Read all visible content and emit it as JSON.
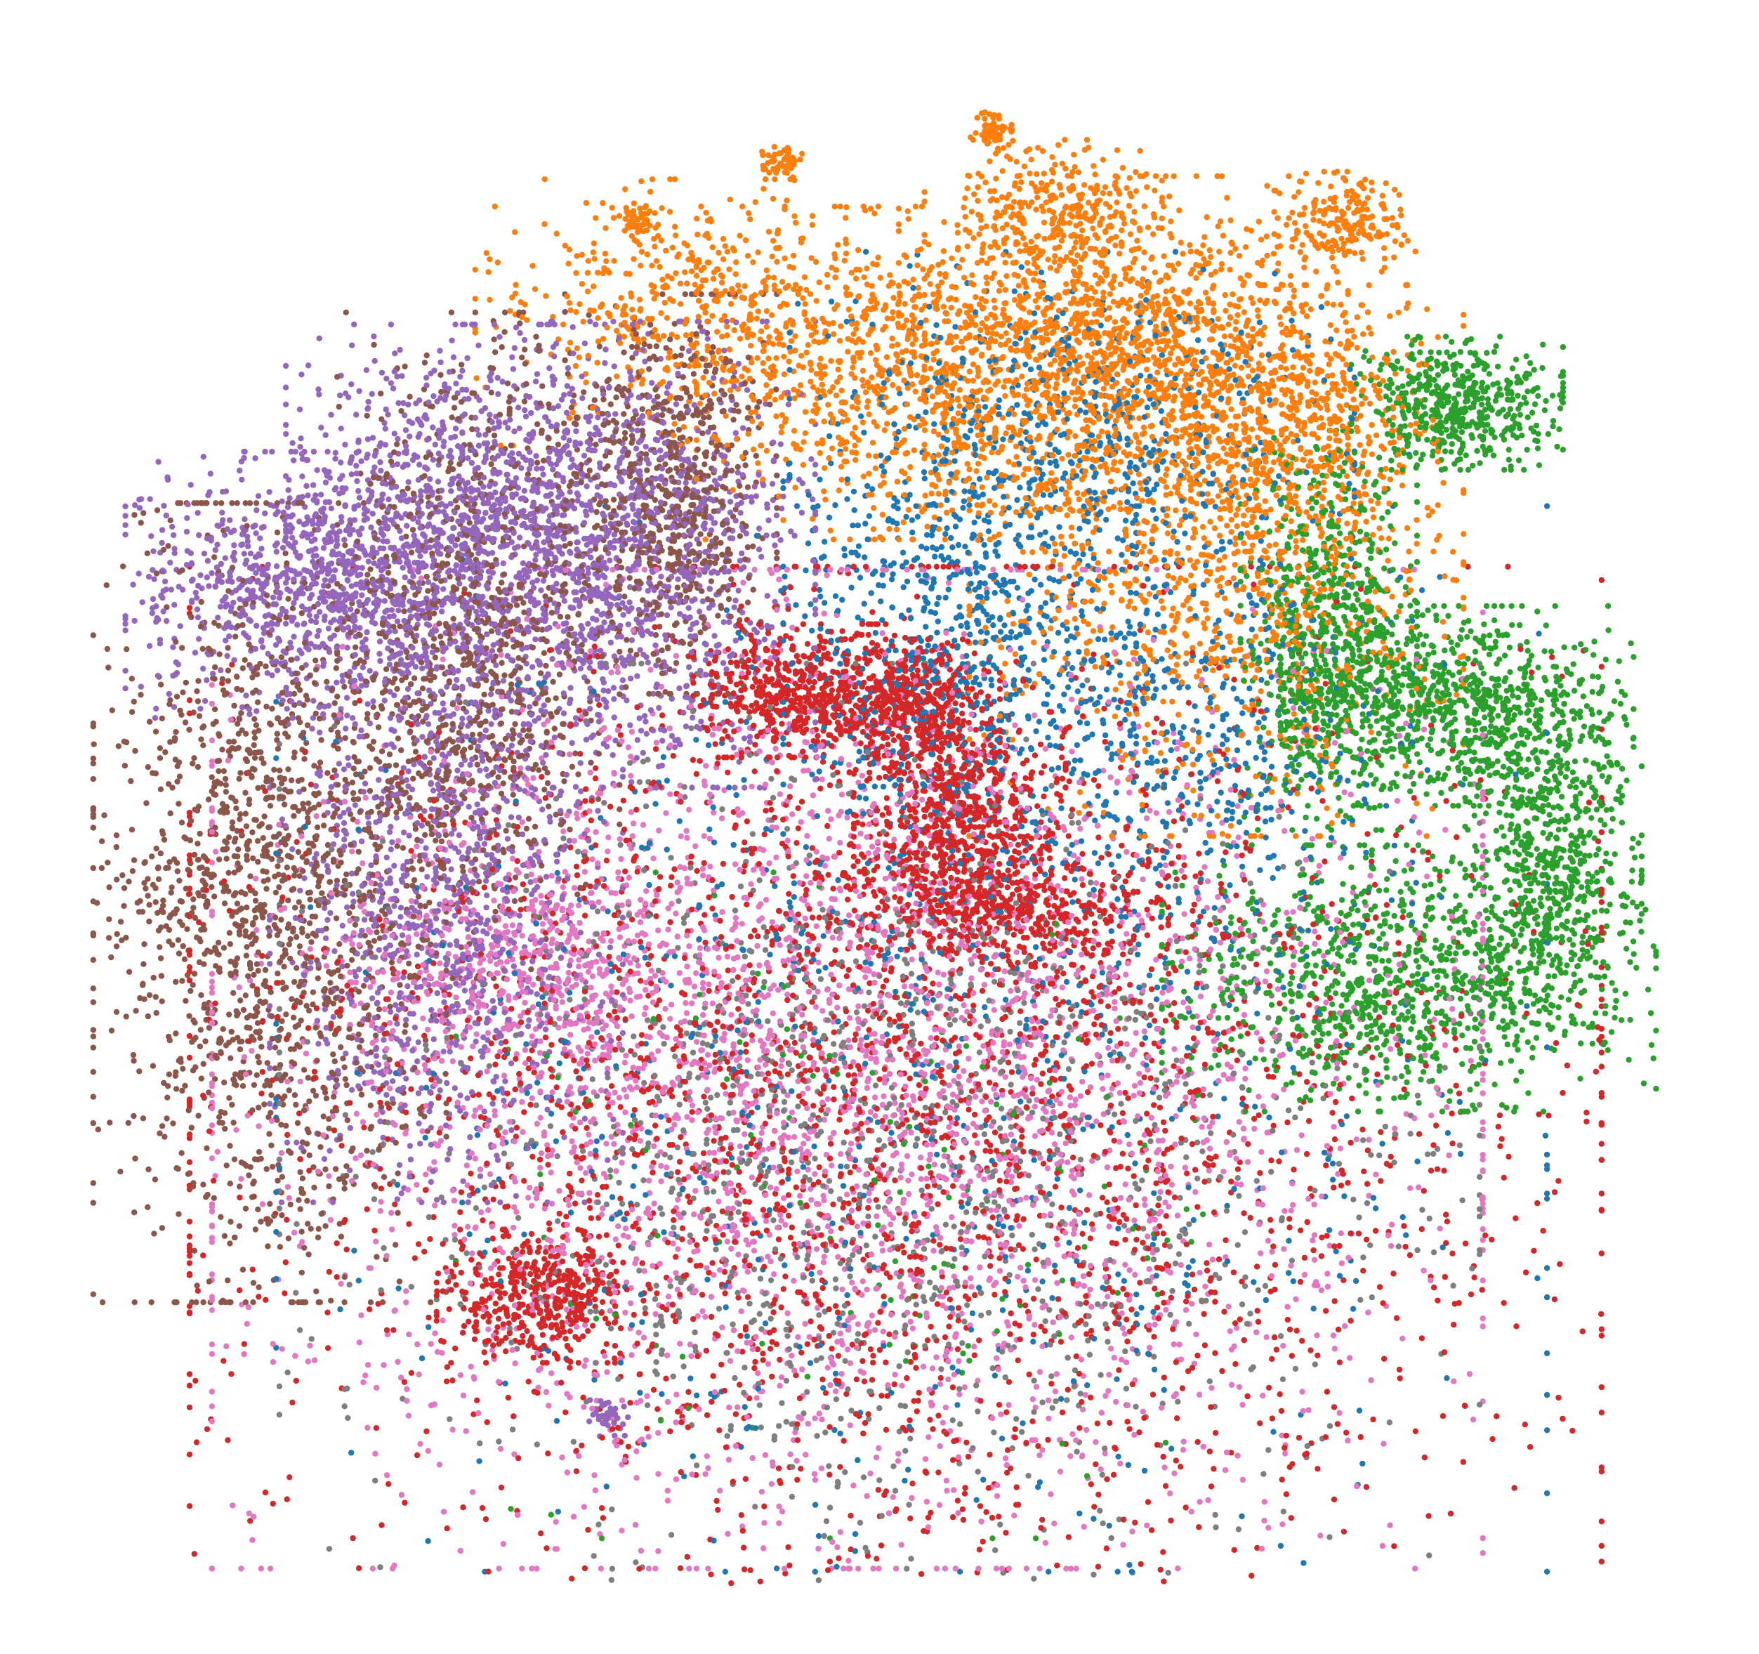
{
  "chart_data": {
    "type": "scatter",
    "title": "",
    "xlabel": "",
    "ylabel": "",
    "axes_visible": false,
    "grid": false,
    "legend": "none",
    "xlim": [
      0,
      100
    ],
    "ylim": [
      0,
      100
    ],
    "marker": "dot",
    "series": [
      {
        "color": "#1f77b4",
        "regions": [
          {
            "center": [
              55,
              63
            ],
            "spread": [
              5,
              7
            ],
            "count": 700
          },
          {
            "center": [
              62,
              77
            ],
            "spread": [
              8,
              5
            ],
            "count": 500
          },
          {
            "center": [
              70,
              57
            ],
            "spread": [
              6,
              8
            ],
            "count": 500
          },
          {
            "center": [
              52,
              36
            ],
            "spread": [
              18,
              16
            ],
            "count": 900
          }
        ]
      },
      {
        "color": "#ff7f0e",
        "regions": [
          {
            "center": [
              54,
              80
            ],
            "spread": [
              7,
              5
            ],
            "count": 1100
          },
          {
            "center": [
              66,
              82
            ],
            "spread": [
              6,
              5
            ],
            "count": 1000
          },
          {
            "center": [
              71,
              67
            ],
            "spread": [
              7,
              8
            ],
            "count": 1200
          },
          {
            "center": [
              76,
              77
            ],
            "spread": [
              4,
              4
            ],
            "count": 500
          },
          {
            "center": [
              38,
              84
            ],
            "spread": [
              6,
              4
            ],
            "count": 500
          },
          {
            "center": [
              61,
              91
            ],
            "spread": [
              3,
              2
            ],
            "count": 250
          },
          {
            "center": [
              79,
              90
            ],
            "spread": [
              2,
              1.5
            ],
            "count": 200
          },
          {
            "center": [
              57,
              96
            ],
            "spread": [
              0.6,
              0.6
            ],
            "count": 60
          },
          {
            "center": [
              44,
              94
            ],
            "spread": [
              0.6,
              0.6
            ],
            "count": 50
          },
          {
            "center": [
              35,
              90
            ],
            "spread": [
              0.6,
              0.6
            ],
            "count": 50
          }
        ]
      },
      {
        "color": "#2ca02c",
        "regions": [
          {
            "center": [
              86,
              78
            ],
            "spread": [
              3,
              2
            ],
            "count": 500
          },
          {
            "center": [
              78,
              63
            ],
            "spread": [
              2.5,
              6
            ],
            "count": 700
          },
          {
            "center": [
              86,
              58
            ],
            "spread": [
              5,
              3
            ],
            "count": 800
          },
          {
            "center": [
              92,
              48
            ],
            "spread": [
              2.5,
              5
            ],
            "count": 600
          },
          {
            "center": [
              83,
              40
            ],
            "spread": [
              7,
              4
            ],
            "count": 1000
          },
          {
            "center": [
              50,
              25
            ],
            "spread": [
              12,
              10
            ],
            "count": 150
          }
        ]
      },
      {
        "color": "#d62728",
        "regions": [
          {
            "center": [
              45,
              59
            ],
            "spread": [
              3,
              2
            ],
            "count": 500
          },
          {
            "center": [
              52,
              58
            ],
            "spread": [
              2.5,
              2
            ],
            "count": 450
          },
          {
            "center": [
              55,
              51
            ],
            "spread": [
              3,
              3
            ],
            "count": 500
          },
          {
            "center": [
              57,
              45
            ],
            "spread": [
              5,
              2
            ],
            "count": 500
          },
          {
            "center": [
              29,
              19
            ],
            "spread": [
              3,
              2
            ],
            "count": 400
          },
          {
            "center": [
              51,
              32
            ],
            "spread": [
              20,
              16
            ],
            "count": 3200
          }
        ]
      },
      {
        "color": "#9467bd",
        "regions": [
          {
            "center": [
              14,
              66
            ],
            "spread": [
              5,
              4
            ],
            "count": 900
          },
          {
            "center": [
              24,
              70
            ],
            "spread": [
              5,
              6
            ],
            "count": 1100
          },
          {
            "center": [
              35,
              68
            ],
            "spread": [
              5,
              7
            ],
            "count": 1100
          },
          {
            "center": [
              23,
              45
            ],
            "spread": [
              5,
              9
            ],
            "count": 1100
          },
          {
            "center": [
              33,
              11
            ],
            "spread": [
              0.6,
              0.6
            ],
            "count": 40
          }
        ]
      },
      {
        "color": "#8c564b",
        "regions": [
          {
            "center": [
              12,
              45
            ],
            "spread": [
              5,
              12
            ],
            "count": 1600
          },
          {
            "center": [
              25,
              62
            ],
            "spread": [
              4,
              10
            ],
            "count": 1000
          },
          {
            "center": [
              37,
              72
            ],
            "spread": [
              3,
              6
            ],
            "count": 700
          }
        ]
      },
      {
        "color": "#e377c2",
        "regions": [
          {
            "center": [
              48,
              34
            ],
            "spread": [
              18,
              15
            ],
            "count": 3600
          },
          {
            "center": [
              28,
              41
            ],
            "spread": [
              5,
              3
            ],
            "count": 400
          }
        ]
      },
      {
        "color": "#7f7f7f",
        "regions": [
          {
            "center": [
              50,
              30
            ],
            "spread": [
              17,
              14
            ],
            "count": 1500
          }
        ]
      }
    ]
  }
}
